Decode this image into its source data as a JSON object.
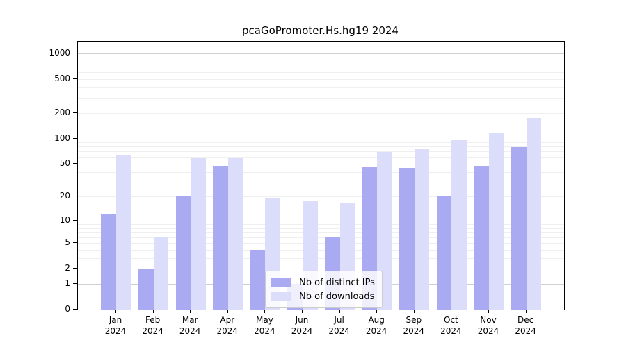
{
  "title": "pcaGoPromoter.Hs.hg19 2024",
  "chart_data": {
    "type": "bar",
    "title": "pcaGoPromoter.Hs.hg19 2024",
    "categories": [
      "Jan",
      "Feb",
      "Mar",
      "Apr",
      "May",
      "Jun",
      "Jul",
      "Aug",
      "Sep",
      "Oct",
      "Nov",
      "Dec"
    ],
    "x_year_label": "2024",
    "series": [
      {
        "name": "Nb of distinct IPs",
        "color": "#aaaaf2",
        "values": [
          12,
          2,
          20,
          47,
          4,
          1,
          6,
          46,
          45,
          20,
          47,
          79
        ]
      },
      {
        "name": "Nb of downloads",
        "color": "#dcdcfb",
        "values": [
          63,
          6,
          58,
          58,
          19,
          18,
          17,
          69,
          75,
          96,
          115,
          173
        ]
      }
    ],
    "y_ticks": [
      0,
      1,
      2,
      5,
      10,
      20,
      50,
      100,
      200,
      500,
      1000
    ],
    "y_scale": "log1p",
    "y_axis_bottom": 0,
    "y_axis_top_approx": 1370,
    "grid": true,
    "major_grid_values": [
      1,
      10,
      100,
      1000
    ],
    "grid_major_color": "#d0d0d0",
    "grid_minor_color": "#efefef",
    "legend_position": "bottom-center-inside",
    "legend_entries": [
      "Nb of distinct IPs",
      "Nb of downloads"
    ]
  }
}
